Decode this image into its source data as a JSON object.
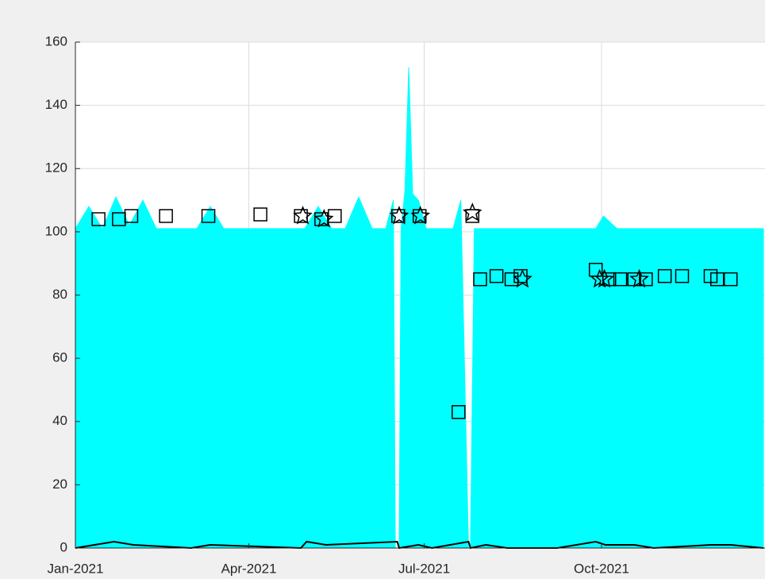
{
  "chart_data": {
    "type": "mixed",
    "xlim": [
      0,
      357
    ],
    "ylim": [
      0,
      160
    ],
    "xticks": [
      {
        "value": 0,
        "label": "Jan-2021"
      },
      {
        "value": 90,
        "label": "Apr-2021"
      },
      {
        "value": 181,
        "label": "Jul-2021"
      },
      {
        "value": 273,
        "label": "Oct-2021"
      }
    ],
    "yticks": [
      0,
      20,
      40,
      60,
      80,
      100,
      120,
      140,
      160
    ],
    "grid": true,
    "series": [
      {
        "kind": "area",
        "color": "#00ffff",
        "x": [
          0,
          7,
          14,
          21,
          28,
          35,
          42,
          49,
          56,
          63,
          70,
          77,
          84,
          91,
          98,
          105,
          112,
          119,
          126,
          133,
          140,
          147,
          154,
          161,
          165,
          166,
          168,
          169,
          171,
          173,
          175,
          178,
          182,
          189,
          196,
          200,
          204,
          205,
          207,
          211,
          218,
          225,
          232,
          239,
          246,
          253,
          260,
          267,
          270,
          274,
          281,
          288,
          295,
          302,
          309,
          316,
          323,
          330,
          337,
          344,
          351,
          357
        ],
        "values": [
          101,
          108,
          101,
          111,
          102,
          110,
          101,
          101,
          101,
          101,
          108,
          101,
          101,
          101,
          101,
          101,
          101,
          101,
          108,
          101,
          101,
          111,
          101,
          101,
          110,
          0,
          0,
          101,
          113,
          152,
          112,
          110,
          101,
          101,
          101,
          110,
          0,
          0,
          101,
          101,
          101,
          101,
          101,
          101,
          101,
          101,
          101,
          101,
          101,
          105,
          101,
          101,
          101,
          101,
          101,
          101,
          101,
          101,
          101,
          101,
          101,
          101
        ]
      },
      {
        "kind": "line",
        "color": "#000000",
        "x": [
          0,
          10,
          20,
          30,
          60,
          70,
          117,
          120,
          130,
          167,
          168,
          178,
          185,
          204,
          205,
          213,
          224,
          250,
          270,
          275,
          290,
          300,
          330,
          340,
          357
        ],
        "values": [
          0,
          1,
          2,
          1,
          0,
          1,
          0,
          2,
          1,
          2,
          0,
          1,
          0,
          2,
          0,
          1,
          0,
          0,
          2,
          1,
          1,
          0,
          1,
          1,
          0
        ]
      },
      {
        "kind": "scatter",
        "marker": "square",
        "color": "#000000",
        "x": [
          12,
          22.6,
          29,
          47,
          69,
          96,
          117,
          127.6,
          134.6,
          167.5,
          178.6,
          198.8,
          206,
          210,
          218.5,
          226.3,
          231,
          270,
          277,
          282.7,
          290,
          296,
          305.8,
          314.8,
          329.6,
          333,
          340
        ],
        "values": [
          104,
          104,
          105,
          105,
          105,
          105.5,
          105,
          104,
          105,
          105,
          105,
          43,
          105,
          85,
          86,
          85,
          86,
          88,
          85,
          85,
          85,
          85,
          86,
          86,
          86,
          85,
          85
        ]
      },
      {
        "kind": "scatter",
        "marker": "star",
        "color": "#000000",
        "x": [
          118,
          129,
          168,
          179,
          206,
          232,
          272,
          274.5,
          292.6
        ],
        "values": [
          105,
          104,
          105,
          105,
          106,
          85,
          85,
          85,
          85
        ]
      }
    ]
  }
}
